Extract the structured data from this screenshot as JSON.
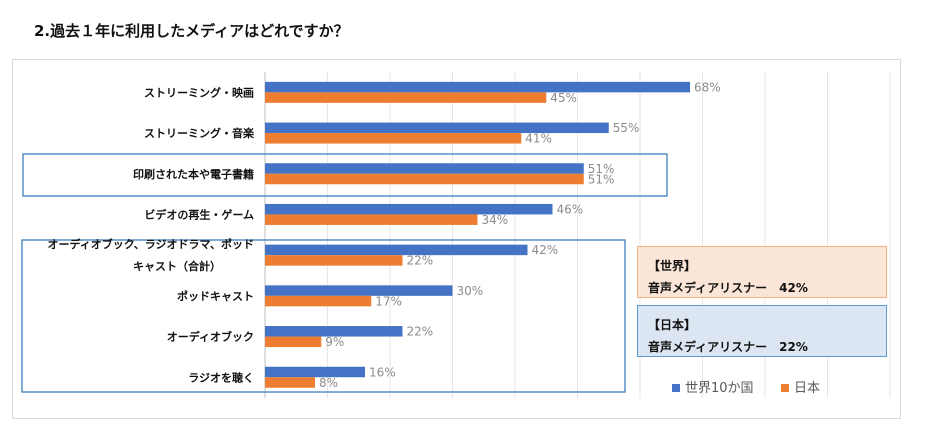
{
  "title": "2.過去１年に利用したメディアはどれですか？",
  "chart_data": {
    "type": "bar",
    "orientation": "horizontal",
    "categories": [
      "ストリーミング・映画",
      "ストリーミング・音楽",
      "印刷された本や電子書籍",
      "ビデオの再生・ゲーム",
      [
        "オーディオブック、ラジオドラマ、ポッド",
        "キャスト（合計）"
      ],
      "ポッドキャスト",
      "オーディオブック",
      "ラジオを聴く"
    ],
    "series": [
      {
        "name": "世界10か国",
        "color": "#4472c4",
        "values": [
          68,
          55,
          51,
          46,
          42,
          30,
          22,
          16
        ]
      },
      {
        "name": "日本",
        "color": "#ed7d31",
        "values": [
          45,
          41,
          51,
          34,
          22,
          17,
          9,
          8
        ]
      }
    ],
    "value_suffix": "%",
    "xlim": [
      0,
      100
    ],
    "grid": true,
    "legend": "bottom-right",
    "highlight_categories": [
      2,
      4,
      5,
      6,
      7
    ]
  },
  "info_boxes": {
    "world": {
      "heading": "【世界】",
      "text": "音声メディアリスナー　42%"
    },
    "japan": {
      "heading": "【日本】",
      "text": "音声メディアリスナー　22%"
    }
  }
}
